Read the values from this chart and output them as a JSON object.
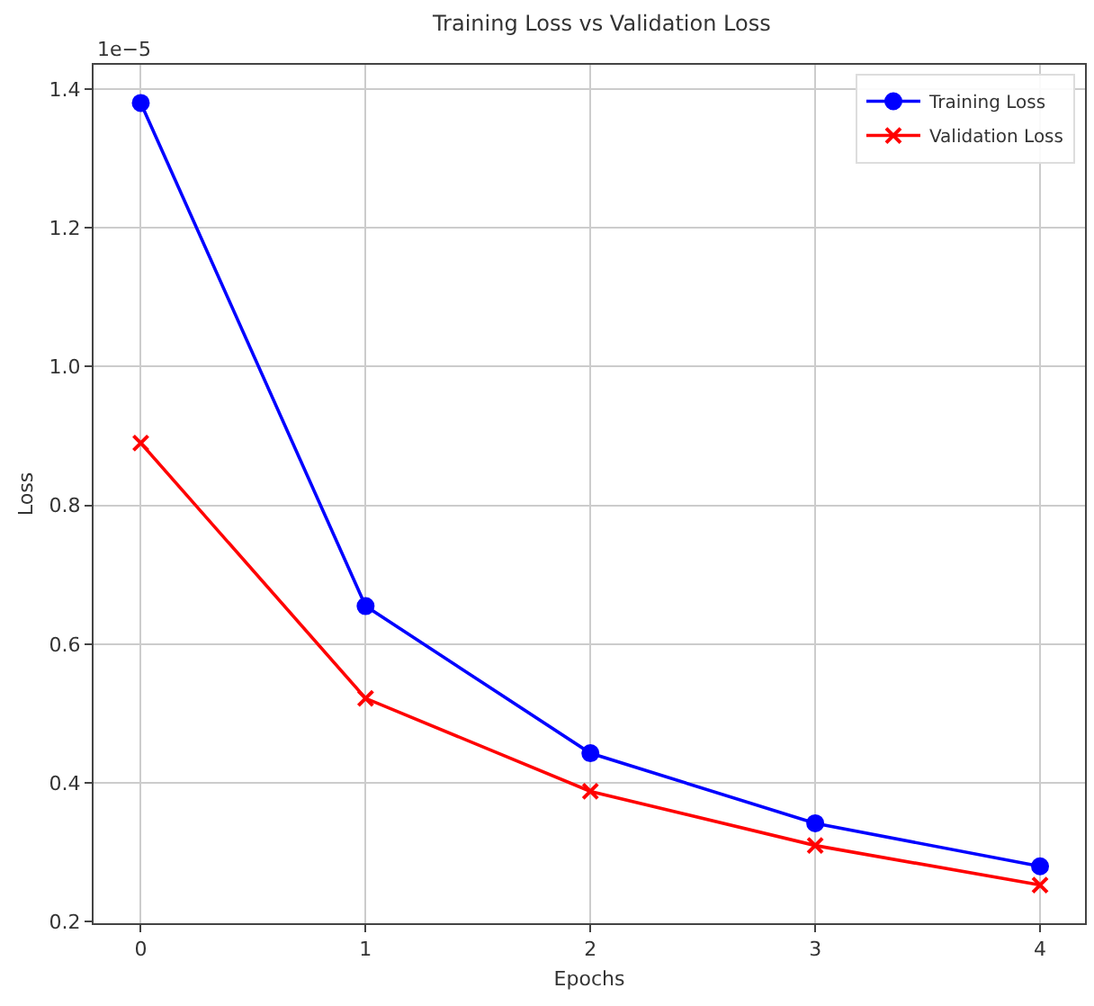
{
  "chart_data": {
    "type": "line",
    "title": "Training Loss vs Validation Loss",
    "xlabel": "Epochs",
    "ylabel": "Loss",
    "x": [
      0,
      1,
      2,
      3,
      4
    ],
    "series": [
      {
        "name": "Training Loss",
        "color": "#0000ff",
        "marker": "circle",
        "values": [
          1.38,
          0.655,
          0.443,
          0.342,
          0.28
        ]
      },
      {
        "name": "Validation Loss",
        "color": "#ff0000",
        "marker": "cross",
        "values": [
          0.89,
          0.522,
          0.388,
          0.31,
          0.253
        ]
      }
    ],
    "xlim": [
      -0.21,
      4.2
    ],
    "xticks": [
      0,
      1,
      2,
      3,
      4
    ],
    "ylim": [
      0.198,
      1.435
    ],
    "yticks": [
      0.2,
      0.4,
      0.6,
      0.8,
      {
        "value": 1.0,
        "label": "1.0"
      },
      1.2,
      1.4
    ],
    "annotations": [
      "1e−5"
    ],
    "grid": true,
    "legend": "top right",
    "line_style": "solid"
  }
}
